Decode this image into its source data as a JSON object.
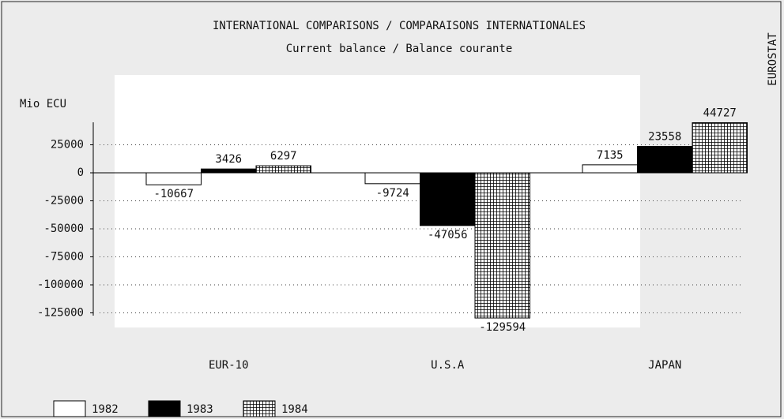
{
  "chart_data": {
    "type": "bar",
    "title": "INTERNATIONAL COMPARISONS / COMPARAISONS INTERNATIONALES",
    "subtitle": "Current balance / Balance courante",
    "y_label": "Mio ECU",
    "source": "EUROSTAT",
    "categories": [
      "EUR-10",
      "U.S.A",
      "JAPAN"
    ],
    "series": [
      {
        "name": "1982",
        "color": "#ffffff",
        "values": [
          -10667,
          -9724,
          7135
        ]
      },
      {
        "name": "1983",
        "color": "#000000",
        "values": [
          3426,
          -47056,
          23558
        ]
      },
      {
        "name": "1984",
        "color": "#000000",
        "pattern": "grid",
        "values": [
          6297,
          -129594,
          44727
        ]
      }
    ],
    "ylim": [
      -130000,
      50000
    ],
    "yticks": [
      25000,
      0,
      -25000,
      -50000,
      -75000,
      -100000,
      -125000
    ],
    "grid": true,
    "legend": "bottom-left"
  }
}
